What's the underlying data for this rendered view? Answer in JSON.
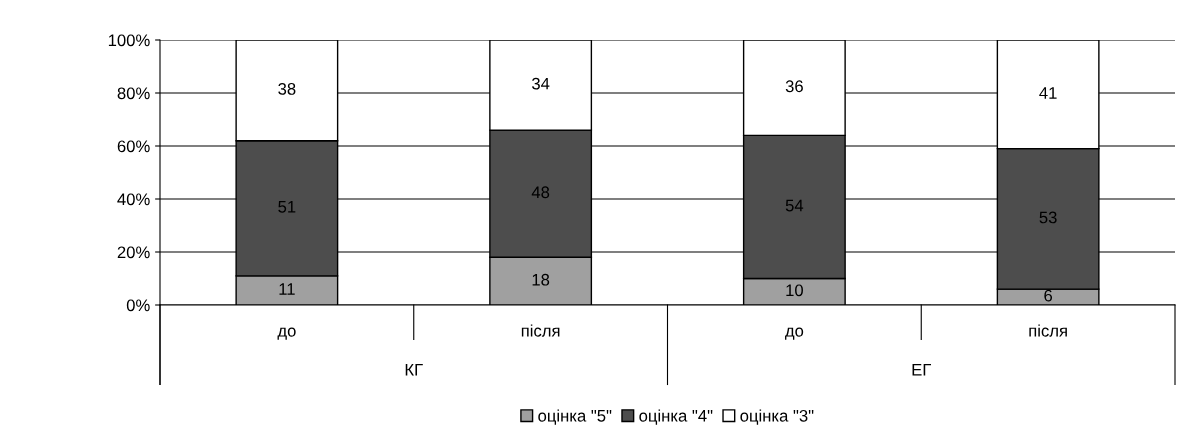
{
  "chart_data": {
    "type": "bar",
    "stacked": true,
    "categories": [
      "до",
      "після",
      "до",
      "після"
    ],
    "series": [
      {
        "name": "оцінка \"5\"",
        "color": "#a0a0a0",
        "values": [
          11,
          18,
          10,
          6
        ]
      },
      {
        "name": "оцінка \"4\"",
        "color": "#4d4d4d",
        "values": [
          51,
          48,
          54,
          53
        ]
      },
      {
        "name": "оцінка \"3\"",
        "color": "#ffffff",
        "values": [
          38,
          34,
          36,
          41
        ]
      }
    ],
    "annotations": [
      "КГ",
      "ЕГ"
    ],
    "ylim": [
      0,
      100
    ],
    "yticks": [
      {
        "value": 0,
        "label": "0%"
      },
      {
        "value": 20,
        "label": "20%"
      },
      {
        "value": 40,
        "label": "40%"
      },
      {
        "value": 60,
        "label": "60%"
      },
      {
        "value": 80,
        "label": "80%"
      },
      {
        "value": 100,
        "label": "100%"
      }
    ],
    "grid": "y",
    "legend": "bottom",
    "data_labels": true
  }
}
